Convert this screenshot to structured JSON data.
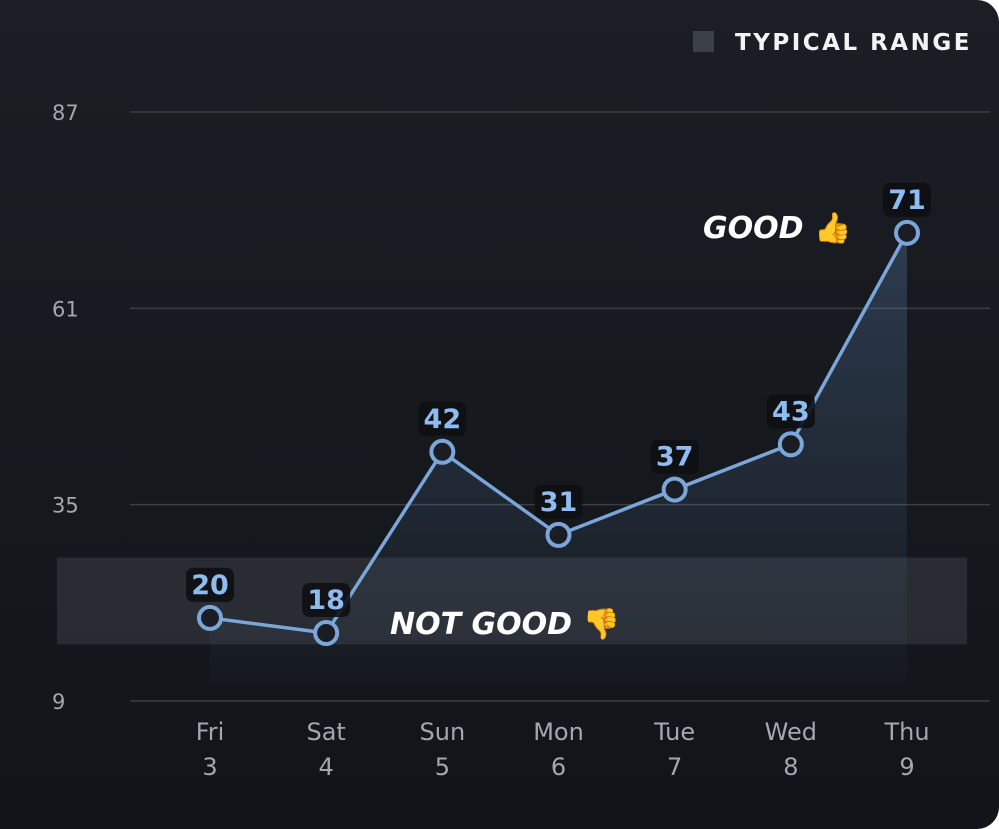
{
  "chart_data": {
    "type": "line",
    "categories": [
      {
        "day": "Fri",
        "date": "3"
      },
      {
        "day": "Sat",
        "date": "4"
      },
      {
        "day": "Sun",
        "date": "5"
      },
      {
        "day": "Mon",
        "date": "6"
      },
      {
        "day": "Tue",
        "date": "7"
      },
      {
        "day": "Wed",
        "date": "8"
      },
      {
        "day": "Thu",
        "date": "9"
      }
    ],
    "values": [
      20,
      18,
      42,
      31,
      37,
      43,
      71
    ],
    "y_ticks": [
      9,
      35,
      61,
      87
    ],
    "ylim": [
      9,
      87
    ],
    "typical_range": [
      16.5,
      28
    ],
    "legend": {
      "label": "TYPICAL RANGE",
      "placement": "top-right"
    },
    "annotations": [
      {
        "text": "GOOD",
        "emoji": "👍",
        "near_index": 6
      },
      {
        "text": "NOT GOOD",
        "emoji": "👎",
        "near_index": 1
      }
    ],
    "grid": true,
    "colors": {
      "line": "#7aa6d9",
      "point_label": "#8fbcf0",
      "range_band": "#3a3e46",
      "grid": "#3a3e45"
    }
  }
}
